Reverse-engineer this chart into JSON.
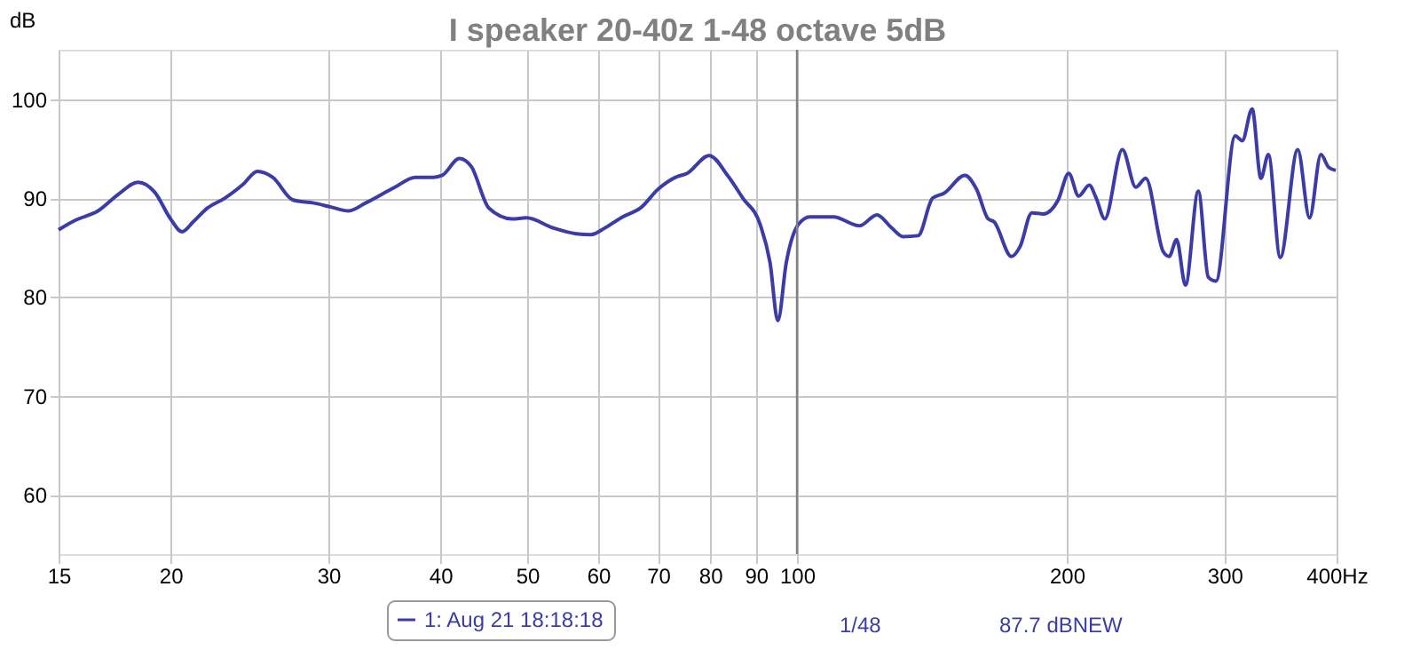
{
  "chart_data": {
    "type": "line",
    "title": "I speaker 20-40z 1-48 octave 5dB",
    "ylabel": "dB",
    "xlim": [
      15,
      400
    ],
    "ylim": [
      54,
      105
    ],
    "xticks": [
      15,
      20,
      30,
      40,
      50,
      60,
      70,
      80,
      90,
      100,
      200,
      300,
      {
        "value": 400,
        "label": "400Hz"
      }
    ],
    "yticks": [
      60,
      70,
      80,
      90,
      100
    ],
    "log": "x",
    "grid": true,
    "legend": "bottom",
    "marker": "none",
    "line_style": "solid",
    "ref_lines": [
      {
        "axis": "x",
        "value": 100,
        "color": "#808080"
      }
    ],
    "annotations": [
      "1/48",
      "87.7 dBNEW"
    ],
    "series": [
      {
        "name": "1: Aug 21 18:18:18",
        "color": "#3c3ca8",
        "x": [
          15.0,
          15.7,
          16.6,
          17.5,
          18.4,
          19.2,
          20.0,
          20.6,
          21.2,
          22.0,
          23.0,
          24.1,
          25.0,
          26.0,
          27.4,
          28.9,
          30.2,
          31.6,
          33.0,
          35.6,
          37.5,
          39.3,
          40.2,
          42.0,
          43.3,
          45.3,
          48.1,
          49.9,
          53.4,
          56.7,
          58.9,
          61.1,
          63.9,
          66.9,
          70.0,
          73.2,
          75.4,
          79.8,
          83.8,
          87.0,
          91.0,
          93.3,
          95.2,
          97.3,
          100.3,
          103.4,
          109.8,
          117.4,
          122.8,
          127.5,
          131.4,
          136.5,
          141.7,
          146.0,
          153.9,
          158.6,
          163.4,
          165.9,
          173.5,
          177.4,
          182.8,
          188.4,
          195.6,
          201.0,
          206.2,
          211.9,
          215.7,
          220.5,
          230.7,
          238.8,
          245.0,
          256.2,
          260.2,
          265.2,
          271.3,
          280.4,
          287.7,
          293.4,
          308.3,
          313.9,
          322.0,
          329.3,
          335.7,
          346.1,
          362.0,
          373.2,
          384.2,
          392.0,
          399.2
        ],
        "values": [
          86.8,
          87.8,
          88.7,
          90.4,
          91.6,
          90.6,
          87.9,
          86.6,
          87.6,
          89.0,
          90.0,
          91.4,
          92.7,
          92.1,
          89.8,
          89.5,
          89.1,
          88.7,
          89.5,
          91.1,
          92.1,
          92.1,
          92.3,
          94.0,
          93.2,
          89.0,
          87.9,
          88.0,
          87.0,
          86.4,
          86.3,
          87.0,
          88.1,
          89.0,
          90.9,
          92.1,
          92.5,
          94.3,
          92.2,
          90.0,
          87.3,
          83.5,
          77.6,
          83.5,
          87.3,
          88.1,
          88.1,
          87.2,
          88.3,
          87.0,
          86.1,
          86.2,
          90.0,
          90.5,
          92.3,
          90.9,
          87.9,
          87.6,
          84.1,
          85.1,
          88.5,
          88.4,
          89.8,
          92.5,
          90.2,
          91.3,
          90.0,
          87.9,
          94.9,
          91.1,
          92.0,
          84.6,
          84.1,
          85.8,
          81.2,
          90.7,
          82.0,
          81.6,
          96.3,
          95.8,
          99.0,
          92.0,
          94.4,
          84.0,
          94.9,
          88.0,
          94.4,
          93.1,
          92.8
        ]
      }
    ]
  }
}
